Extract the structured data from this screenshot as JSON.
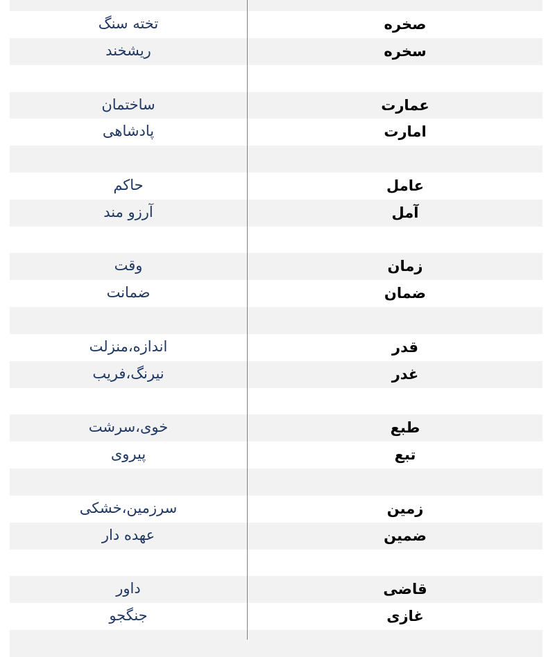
{
  "colors": {
    "stripe": "#f2f2f2",
    "meaning_text": "#1f3864",
    "word_text": "#000000",
    "divider": "#808080"
  },
  "rows": [
    {
      "word": "",
      "meaning": ""
    },
    {
      "word": "صخره",
      "meaning": "تخته سنگ"
    },
    {
      "word": "سخره",
      "meaning": "ریشخند"
    },
    {
      "word": "",
      "meaning": ""
    },
    {
      "word": "عمارت",
      "meaning": "ساختمان"
    },
    {
      "word": "امارت",
      "meaning": "پادشاهی"
    },
    {
      "word": "",
      "meaning": ""
    },
    {
      "word": "عامل",
      "meaning": "حاکم"
    },
    {
      "word": "آمل",
      "meaning": "آرزو مند"
    },
    {
      "word": "",
      "meaning": ""
    },
    {
      "word": "زمان",
      "meaning": "وقت"
    },
    {
      "word": "ضمان",
      "meaning": "ضمانت"
    },
    {
      "word": "",
      "meaning": ""
    },
    {
      "word": "قدر",
      "meaning": "اندازه،منزلت"
    },
    {
      "word": "غدر",
      "meaning": "نیرنگ،فریب"
    },
    {
      "word": "",
      "meaning": ""
    },
    {
      "word": "طبع",
      "meaning": "خوی،سرشت"
    },
    {
      "word": "تبع",
      "meaning": "پیروی"
    },
    {
      "word": "",
      "meaning": ""
    },
    {
      "word": "زمین",
      "meaning": "سرزمین،خشکی"
    },
    {
      "word": "ضمین",
      "meaning": "عهده دار"
    },
    {
      "word": "",
      "meaning": ""
    },
    {
      "word": "قاضی",
      "meaning": "داور"
    },
    {
      "word": "غازی",
      "meaning": "جنگجو"
    },
    {
      "word": "",
      "meaning": ""
    }
  ]
}
